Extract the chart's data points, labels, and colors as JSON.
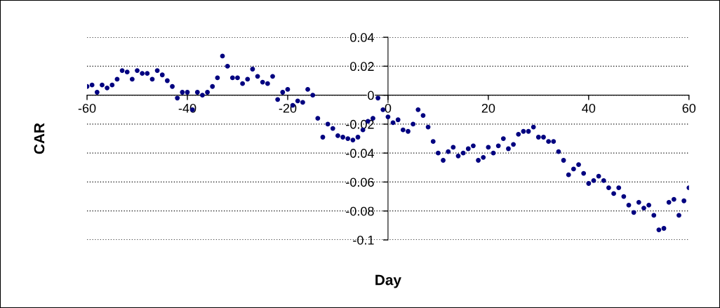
{
  "chart_data": {
    "type": "scatter",
    "xlabel": "Day",
    "ylabel": "CAR",
    "x": [
      -60,
      -59,
      -58,
      -57,
      -56,
      -55,
      -54,
      -53,
      -52,
      -51,
      -50,
      -49,
      -48,
      -47,
      -46,
      -45,
      -44,
      -43,
      -42,
      -41,
      -40,
      -39,
      -38,
      -37,
      -36,
      -35,
      -34,
      -33,
      -32,
      -31,
      -30,
      -29,
      -28,
      -27,
      -26,
      -25,
      -24,
      -23,
      -22,
      -21,
      -20,
      -19,
      -18,
      -17,
      -16,
      -15,
      -14,
      -13,
      -12,
      -11,
      -10,
      -9,
      -8,
      -7,
      -6,
      -5,
      -4,
      -3,
      -2,
      -1,
      0,
      1,
      2,
      3,
      4,
      5,
      6,
      7,
      8,
      9,
      10,
      11,
      12,
      13,
      14,
      15,
      16,
      17,
      18,
      19,
      20,
      21,
      22,
      23,
      24,
      25,
      26,
      27,
      28,
      29,
      30,
      31,
      32,
      33,
      34,
      35,
      36,
      37,
      38,
      39,
      40,
      41,
      42,
      43,
      44,
      45,
      46,
      47,
      48,
      49,
      50,
      51,
      52,
      53,
      54,
      55,
      56,
      57,
      58,
      59,
      60
    ],
    "series": [
      {
        "color": "#000080",
        "values": [
          0.006,
          0.007,
          0.002,
          0.007,
          0.005,
          0.007,
          0.011,
          0.017,
          0.016,
          0.011,
          0.017,
          0.015,
          0.015,
          0.011,
          0.017,
          0.014,
          0.01,
          0.006,
          -0.002,
          0.002,
          0.002,
          -0.01,
          0.002,
          0.0,
          0.002,
          0.006,
          0.012,
          0.027,
          0.02,
          0.012,
          0.012,
          0.008,
          0.011,
          0.018,
          0.013,
          0.009,
          0.008,
          0.013,
          -0.003,
          0.002,
          0.004,
          -0.007,
          -0.004,
          -0.005,
          0.004,
          0.0,
          -0.016,
          -0.029,
          -0.02,
          -0.023,
          -0.028,
          -0.029,
          -0.03,
          -0.031,
          -0.029,
          -0.024,
          -0.018,
          -0.016,
          -0.002,
          -0.01,
          -0.015,
          -0.019,
          -0.017,
          -0.024,
          -0.025,
          -0.02,
          -0.01,
          -0.014,
          -0.022,
          -0.032,
          -0.04,
          -0.045,
          -0.039,
          -0.036,
          -0.042,
          -0.04,
          -0.037,
          -0.035,
          -0.045,
          -0.043,
          -0.036,
          -0.04,
          -0.035,
          -0.03,
          -0.037,
          -0.034,
          -0.027,
          -0.025,
          -0.025,
          -0.022,
          -0.029,
          -0.029,
          -0.032,
          -0.032,
          -0.039,
          -0.045,
          -0.055,
          -0.051,
          -0.048,
          -0.054,
          -0.061,
          -0.059,
          -0.056,
          -0.059,
          -0.064,
          -0.068,
          -0.064,
          -0.07,
          -0.076,
          -0.081,
          -0.074,
          -0.078,
          -0.076,
          -0.083,
          -0.093,
          -0.092,
          -0.074,
          -0.072,
          -0.083,
          -0.073,
          -0.064
        ]
      }
    ],
    "xlim": [
      -60,
      60
    ],
    "xticks": [
      -60,
      -40,
      -20,
      0,
      20,
      40,
      60
    ],
    "ylim": [
      -0.1,
      0.04
    ],
    "yticks": [
      -0.1,
      -0.08,
      -0.06,
      -0.04,
      -0.02,
      0,
      0.02,
      0.04
    ],
    "grid": "y",
    "marker": "circle"
  }
}
